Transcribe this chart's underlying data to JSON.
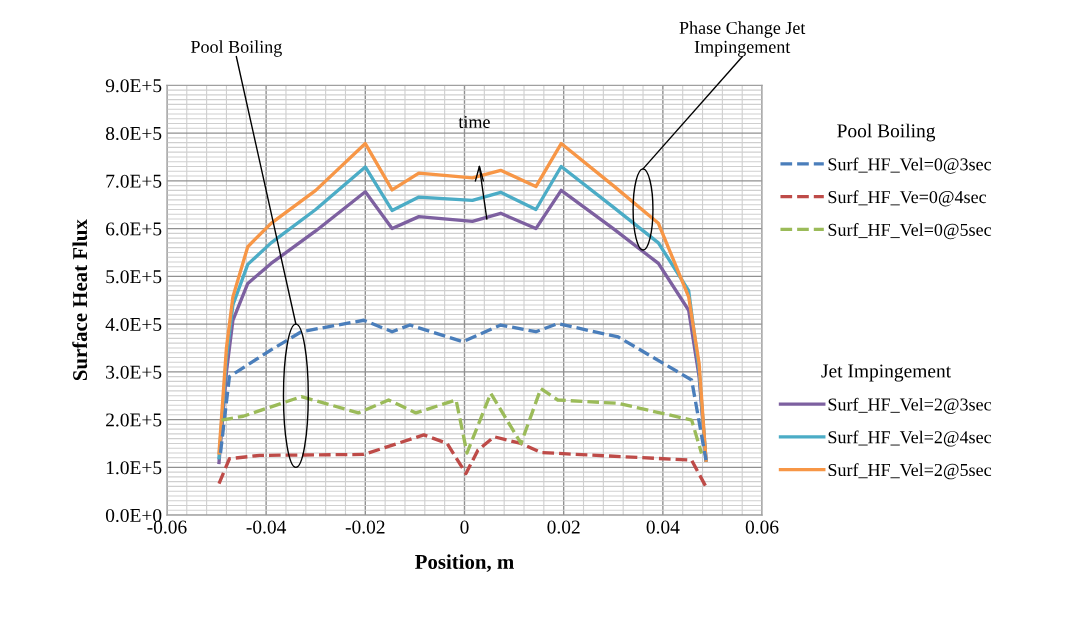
{
  "chart_data": {
    "type": "line",
    "xlabel": "Position, m",
    "ylabel": "Surface Heat Flux",
    "xlim": [
      -0.06,
      0.06
    ],
    "xticks": [
      {
        "value": -0.06,
        "label": "-0.06"
      },
      {
        "value": -0.04,
        "label": "-0.04"
      },
      {
        "value": -0.02,
        "label": "-0.02"
      },
      0,
      0.02,
      0.04,
      0.06
    ],
    "ylim": [
      0,
      900000
    ],
    "yticks": [
      {
        "value": 0,
        "label": "0.0E+0"
      },
      {
        "value": 100000,
        "label": "1.0E+5"
      },
      {
        "value": 200000,
        "label": "2.0E+5"
      },
      {
        "value": 300000,
        "label": "3.0E+5"
      },
      {
        "value": 400000,
        "label": "4.0E+5"
      },
      {
        "value": 500000,
        "label": "5.0E+5"
      },
      {
        "value": 600000,
        "label": "6.0E+5"
      },
      {
        "value": 700000,
        "label": "7.0E+5"
      },
      {
        "value": 800000,
        "label": "8.0E+5"
      },
      {
        "value": 900000,
        "label": "9.0E+5"
      }
    ],
    "grid": true,
    "legend": "right",
    "marker": "none",
    "series": [
      {
        "name": "Surf_HF_Vel=0@3sec",
        "color": "#4a7ebb",
        "line_style": "dashed",
        "x": [
          -0.0492,
          -0.0474,
          -0.039,
          -0.0329,
          -0.0203,
          -0.0146,
          -0.011,
          -0.0003,
          0.0073,
          0.0144,
          0.0188,
          0.031,
          0.0458,
          0.0487
        ],
        "values": [
          130000,
          290000,
          346000,
          384000,
          408000,
          384000,
          398000,
          363000,
          398000,
          384000,
          401000,
          373000,
          283000,
          115000
        ]
      },
      {
        "name": "Surf_HF_Ve=0@4sec",
        "color": "#be4b48",
        "line_style": "dashed",
        "x": [
          -0.0495,
          -0.0474,
          -0.0413,
          -0.0203,
          -0.0082,
          -0.0035,
          0.0003,
          0.0027,
          0.006,
          0.0114,
          0.0154,
          0.0324,
          0.0458,
          0.0487
        ],
        "values": [
          66000,
          118000,
          125000,
          127000,
          168000,
          150000,
          87000,
          136000,
          164000,
          150000,
          131000,
          122000,
          115000,
          59000
        ]
      },
      {
        "name": "Surf_HF_Vel=0@5sec",
        "color": "#9bbb59",
        "line_style": "dashed",
        "x": [
          -0.049,
          -0.0446,
          -0.0329,
          -0.0214,
          -0.0153,
          -0.0098,
          -0.0017,
          0.0005,
          0.0053,
          0.0114,
          0.0154,
          0.0188,
          0.031,
          0.0458,
          0.0478
        ],
        "values": [
          199000,
          207000,
          248000,
          214000,
          241000,
          214000,
          241000,
          130000,
          255000,
          150000,
          265000,
          241000,
          234000,
          199000,
          129000
        ]
      },
      {
        "name": "Surf_HF_Vel=2@3sec",
        "color": "#7d60a0",
        "line_style": "solid",
        "x": [
          -0.0495,
          -0.048,
          -0.0467,
          -0.0437,
          -0.039,
          -0.03,
          -0.02,
          -0.0146,
          -0.0092,
          0.0016,
          0.0073,
          0.0144,
          0.0195,
          0.03,
          0.0391,
          0.0452,
          0.0473,
          0.0487
        ],
        "values": [
          110000,
          300000,
          408000,
          485000,
          527000,
          595000,
          677000,
          600000,
          625000,
          615000,
          632000,
          600000,
          680000,
          600000,
          527000,
          429000,
          290000,
          115000
        ]
      },
      {
        "name": "Surf_HF_Vel=2@4sec",
        "color": "#4bacc6",
        "line_style": "solid",
        "x": [
          -0.0495,
          -0.048,
          -0.0467,
          -0.0437,
          -0.039,
          -0.03,
          -0.02,
          -0.0146,
          -0.0092,
          0.0016,
          0.0073,
          0.0144,
          0.0195,
          0.03,
          0.0391,
          0.0452,
          0.0473,
          0.0487
        ],
        "values": [
          120000,
          330000,
          440000,
          525000,
          570000,
          640000,
          729000,
          638000,
          666000,
          659000,
          676000,
          640000,
          730000,
          645000,
          570000,
          470000,
          305000,
          115000
        ]
      },
      {
        "name": "Surf_HF_Vel=2@5sec",
        "color": "#f79646",
        "line_style": "solid",
        "x": [
          -0.0495,
          -0.048,
          -0.0467,
          -0.0437,
          -0.039,
          -0.03,
          -0.02,
          -0.0146,
          -0.0092,
          0.0016,
          0.0073,
          0.0144,
          0.0195,
          0.03,
          0.0391,
          0.0452,
          0.0473,
          0.0487
        ],
        "values": [
          130000,
          350000,
          457000,
          562000,
          611000,
          680000,
          778000,
          681000,
          716000,
          706000,
          722000,
          688000,
          778000,
          690000,
          611000,
          457000,
          318000,
          115000
        ]
      }
    ],
    "annotations": [
      "Pool Boiling",
      "time",
      "Phase Change Jet\nImpingement",
      "Pool Boiling",
      "Jet Impingement"
    ]
  }
}
